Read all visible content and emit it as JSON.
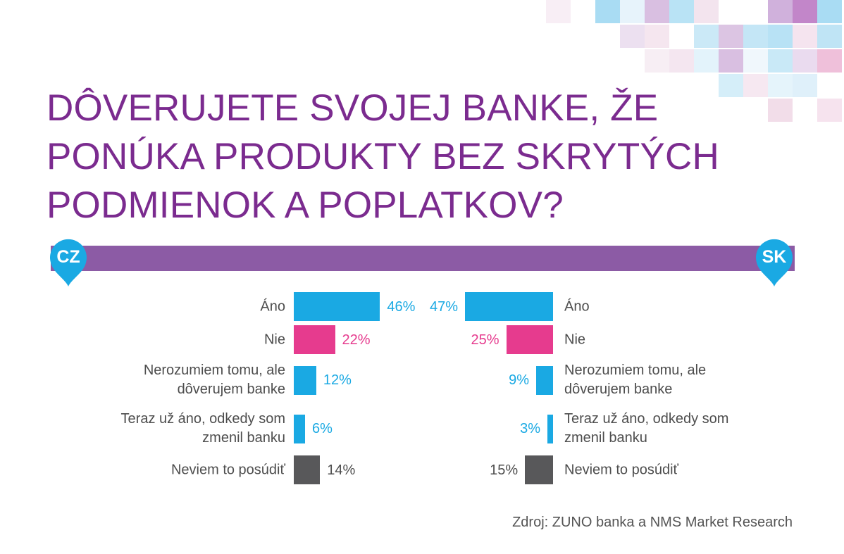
{
  "title": {
    "lines": [
      "DÔVERUJETE SVOJEJ BANKE, ŽE",
      "PONÚKA PRODUKTY BEZ SKRYTÝCH",
      "PODMIENOK A POPLATKOV?"
    ]
  },
  "band": {
    "left_pin": "CZ",
    "right_pin": "SK"
  },
  "source": "Zdroj: ZUNO banka a NMS Market Research",
  "colors": {
    "title": "#7b2b8f",
    "band": "#8c5ba5",
    "pin": "#1aa9e3",
    "blue": "#1aa9e3",
    "pink": "#e63b8e",
    "gray": "#58585a",
    "text": "#4d4d4d"
  },
  "chart_data": {
    "type": "bar",
    "orientation": "horizontal",
    "categories": [
      "Áno",
      "Nie",
      "Nerozumiem tomu, ale\ndôverujem banke",
      "Teraz už áno, odkedy som\nzmenil banku",
      "Neviem to posúdiť"
    ],
    "category_colors": [
      "#1aa9e3",
      "#e63b8e",
      "#1aa9e3",
      "#1aa9e3",
      "#58585a"
    ],
    "label_colors": [
      "#1aa9e3",
      "#e63b8e",
      "#1aa9e3",
      "#1aa9e3",
      "#4d4d4d"
    ],
    "series": [
      {
        "name": "CZ",
        "values": [
          46,
          22,
          12,
          6,
          14
        ],
        "labels": [
          "46%",
          "22%",
          "12%",
          "6%",
          "14%"
        ]
      },
      {
        "name": "SK",
        "values": [
          47,
          25,
          9,
          3,
          15
        ],
        "labels": [
          "47%",
          "25%",
          "9%",
          "3%",
          "15%"
        ]
      }
    ]
  }
}
